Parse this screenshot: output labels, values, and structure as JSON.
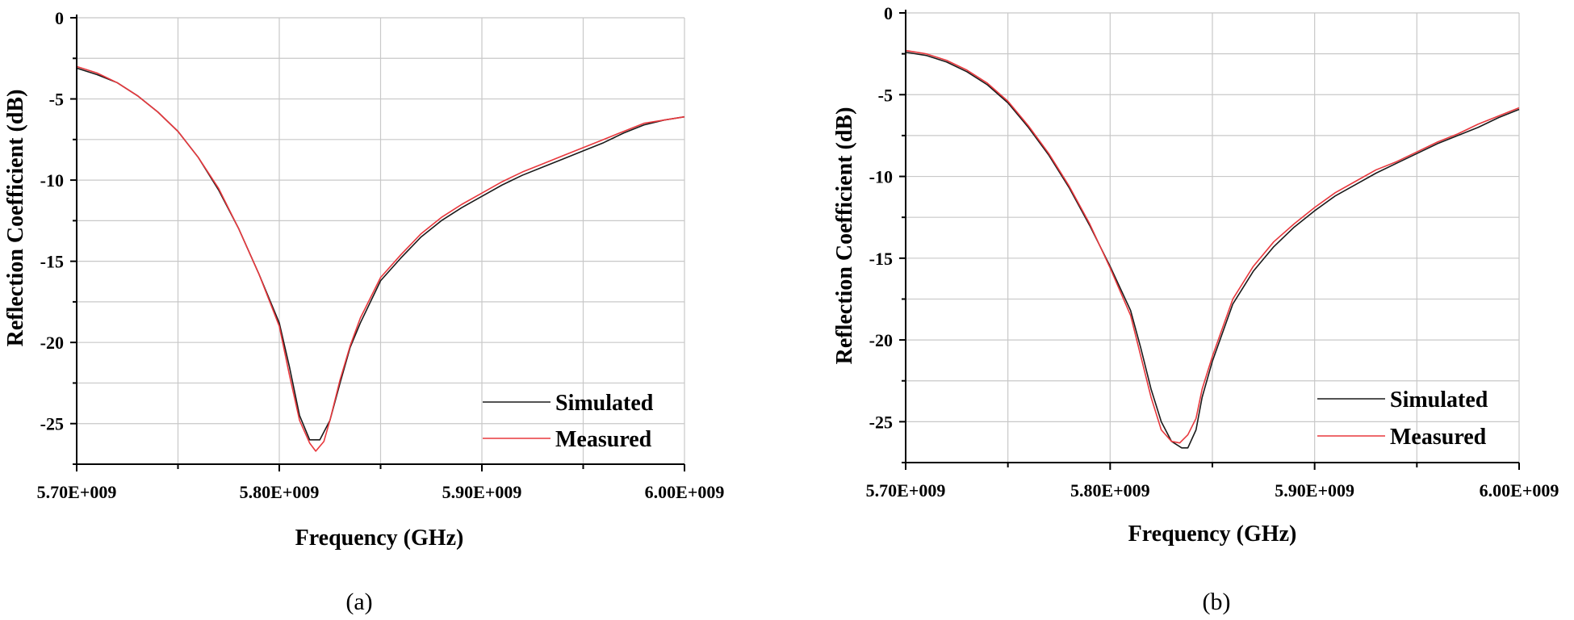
{
  "colors": {
    "simulated": "#1a1a1a",
    "measured": "#e8383d",
    "grid": "#c8c8c8",
    "axis": "#000000"
  },
  "chart_data": [
    {
      "type": "line",
      "panel_label": "(a)",
      "xlabel": "Frequency (GHz)",
      "ylabel": "Reflection Coefficient (dB)",
      "xlim": [
        5700000000.0,
        6000000000.0
      ],
      "ylim": [
        -27.5,
        0
      ],
      "x_ticks": [
        5700000000.0,
        5800000000.0,
        5900000000.0,
        6000000000.0
      ],
      "x_tick_labels": [
        "5.70E+009",
        "5.80E+009",
        "5.90E+009",
        "6.00E+009"
      ],
      "y_ticks": [
        0,
        -5,
        -10,
        -15,
        -20,
        -25
      ],
      "y_tick_labels": [
        "0",
        "-5",
        "-10",
        "-15",
        "-20",
        "-25"
      ],
      "grid": true,
      "legend_position": "bottom-right",
      "series": [
        {
          "name": "Simulated",
          "x": [
            5700000000.0,
            5710000000.0,
            5720000000.0,
            5730000000.0,
            5740000000.0,
            5750000000.0,
            5760000000.0,
            5770000000.0,
            5780000000.0,
            5790000000.0,
            5800000000.0,
            5805000000.0,
            5810000000.0,
            5815000000.0,
            5820000000.0,
            5825000000.0,
            5830000000.0,
            5835000000.0,
            5840000000.0,
            5850000000.0,
            5860000000.0,
            5870000000.0,
            5880000000.0,
            5890000000.0,
            5900000000.0,
            5910000000.0,
            5920000000.0,
            5930000000.0,
            5940000000.0,
            5950000000.0,
            5960000000.0,
            5970000000.0,
            5980000000.0,
            5990000000.0,
            6000000000.0
          ],
          "y": [
            -3.1,
            -3.5,
            -4.0,
            -4.8,
            -5.8,
            -7.0,
            -8.6,
            -10.6,
            -13.0,
            -15.8,
            -18.8,
            -21.5,
            -24.5,
            -26.0,
            -26.0,
            -24.8,
            -22.5,
            -20.3,
            -18.8,
            -16.2,
            -14.8,
            -13.5,
            -12.5,
            -11.7,
            -11.0,
            -10.3,
            -9.7,
            -9.2,
            -8.7,
            -8.2,
            -7.7,
            -7.1,
            -6.6,
            -6.3,
            -6.1
          ]
        },
        {
          "name": "Measured",
          "x": [
            5700000000.0,
            5710000000.0,
            5720000000.0,
            5730000000.0,
            5740000000.0,
            5750000000.0,
            5760000000.0,
            5770000000.0,
            5780000000.0,
            5790000000.0,
            5800000000.0,
            5805000000.0,
            5810000000.0,
            5815000000.0,
            5818000000.0,
            5822000000.0,
            5825000000.0,
            5830000000.0,
            5835000000.0,
            5840000000.0,
            5850000000.0,
            5860000000.0,
            5870000000.0,
            5880000000.0,
            5890000000.0,
            5900000000.0,
            5910000000.0,
            5920000000.0,
            5930000000.0,
            5940000000.0,
            5950000000.0,
            5960000000.0,
            5970000000.0,
            5980000000.0,
            5990000000.0,
            6000000000.0
          ],
          "y": [
            -3.0,
            -3.4,
            -4.0,
            -4.8,
            -5.8,
            -7.0,
            -8.6,
            -10.5,
            -13.0,
            -15.8,
            -19.0,
            -22.0,
            -24.8,
            -26.2,
            -26.7,
            -26.1,
            -24.8,
            -22.3,
            -20.2,
            -18.5,
            -16.0,
            -14.6,
            -13.3,
            -12.3,
            -11.5,
            -10.8,
            -10.1,
            -9.5,
            -9.0,
            -8.5,
            -8.0,
            -7.5,
            -7.0,
            -6.5,
            -6.3,
            -6.1
          ]
        }
      ]
    },
    {
      "type": "line",
      "panel_label": "(b)",
      "xlabel": "Frequency (GHz)",
      "ylabel": "Reflection Coefficient (dB)",
      "xlim": [
        5700000000.0,
        6000000000.0
      ],
      "ylim": [
        -27.5,
        0
      ],
      "x_ticks": [
        5700000000.0,
        5800000000.0,
        5900000000.0,
        6000000000.0
      ],
      "x_tick_labels": [
        "5.70E+009",
        "5.80E+009",
        "5.90E+009",
        "6.00E+009"
      ],
      "y_ticks": [
        0,
        -5,
        -10,
        -15,
        -20,
        -25
      ],
      "y_tick_labels": [
        "0",
        "-5",
        "-10",
        "-15",
        "-20",
        "-25"
      ],
      "grid": true,
      "legend_position": "bottom-right",
      "series": [
        {
          "name": "Simulated",
          "x": [
            5700000000.0,
            5710000000.0,
            5720000000.0,
            5730000000.0,
            5740000000.0,
            5750000000.0,
            5760000000.0,
            5770000000.0,
            5780000000.0,
            5790000000.0,
            5800000000.0,
            5810000000.0,
            5815000000.0,
            5820000000.0,
            5825000000.0,
            5830000000.0,
            5835000000.0,
            5838000000.0,
            5842000000.0,
            5845000000.0,
            5850000000.0,
            5860000000.0,
            5870000000.0,
            5880000000.0,
            5890000000.0,
            5900000000.0,
            5910000000.0,
            5920000000.0,
            5930000000.0,
            5940000000.0,
            5950000000.0,
            5960000000.0,
            5970000000.0,
            5980000000.0,
            5990000000.0,
            6000000000.0
          ],
          "y": [
            -2.4,
            -2.6,
            -3.0,
            -3.6,
            -4.4,
            -5.5,
            -7.0,
            -8.7,
            -10.7,
            -13.0,
            -15.5,
            -18.2,
            -20.5,
            -23.0,
            -25.0,
            -26.2,
            -26.6,
            -26.6,
            -25.5,
            -23.5,
            -21.3,
            -17.8,
            -15.8,
            -14.3,
            -13.1,
            -12.1,
            -11.2,
            -10.5,
            -9.8,
            -9.2,
            -8.6,
            -8.0,
            -7.5,
            -7.0,
            -6.4,
            -5.9
          ]
        },
        {
          "name": "Measured",
          "x": [
            5700000000.0,
            5710000000.0,
            5720000000.0,
            5730000000.0,
            5740000000.0,
            5750000000.0,
            5760000000.0,
            5770000000.0,
            5780000000.0,
            5790000000.0,
            5800000000.0,
            5810000000.0,
            5815000000.0,
            5820000000.0,
            5825000000.0,
            5830000000.0,
            5834000000.0,
            5838000000.0,
            5842000000.0,
            5845000000.0,
            5850000000.0,
            5860000000.0,
            5870000000.0,
            5880000000.0,
            5890000000.0,
            5900000000.0,
            5910000000.0,
            5920000000.0,
            5930000000.0,
            5940000000.0,
            5950000000.0,
            5960000000.0,
            5970000000.0,
            5980000000.0,
            5990000000.0,
            6000000000.0
          ],
          "y": [
            -2.3,
            -2.5,
            -2.9,
            -3.5,
            -4.3,
            -5.4,
            -6.9,
            -8.6,
            -10.6,
            -12.9,
            -15.6,
            -18.5,
            -21.0,
            -23.5,
            -25.5,
            -26.2,
            -26.3,
            -25.8,
            -24.8,
            -23.0,
            -21.0,
            -17.5,
            -15.5,
            -14.0,
            -12.9,
            -11.9,
            -11.0,
            -10.3,
            -9.6,
            -9.1,
            -8.5,
            -7.9,
            -7.4,
            -6.8,
            -6.3,
            -5.8
          ]
        }
      ]
    }
  ]
}
